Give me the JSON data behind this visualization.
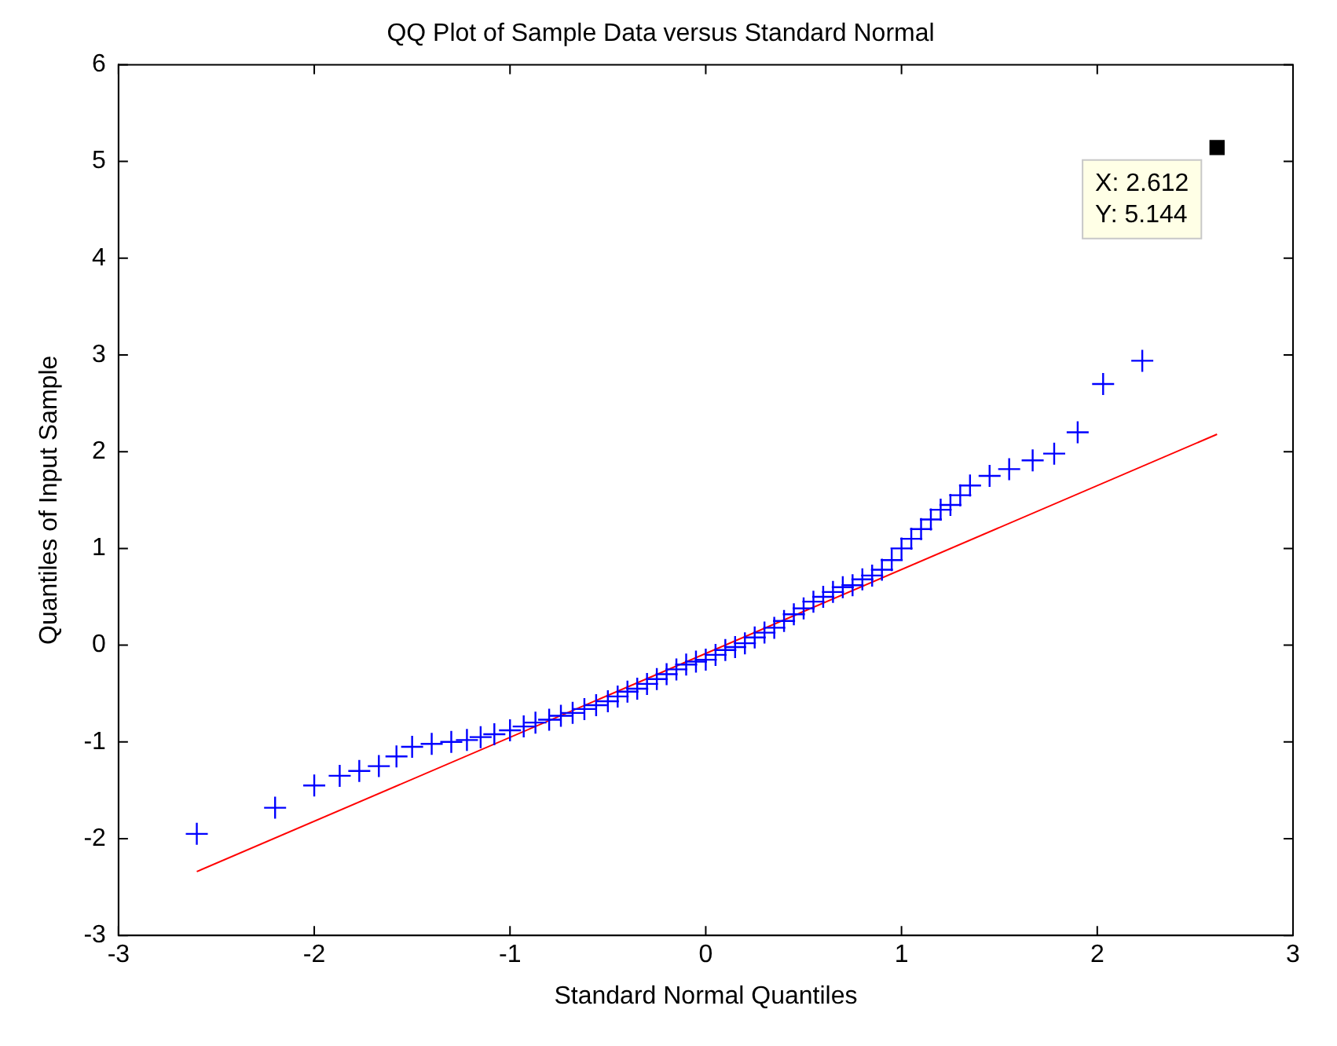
{
  "chart_data": {
    "type": "scatter",
    "title": "QQ Plot of Sample Data versus Standard Normal",
    "xlabel": "Standard Normal Quantiles",
    "ylabel": "Quantiles of Input Sample",
    "xlim": [
      -3,
      3
    ],
    "ylim": [
      -3,
      6
    ],
    "xticks": [
      -3,
      -2,
      -1,
      0,
      1,
      2,
      3
    ],
    "yticks": [
      -3,
      -2,
      -1,
      0,
      1,
      2,
      3,
      4,
      5,
      6
    ],
    "grid": false,
    "marker": "cross",
    "series": [
      {
        "color": "#0000ff",
        "x": [
          -2.6,
          -2.2,
          -2.0,
          -1.87,
          -1.77,
          -1.67,
          -1.58,
          -1.5,
          -1.4,
          -1.3,
          -1.22,
          -1.15,
          -1.08,
          -1.0,
          -0.93,
          -0.87,
          -0.8,
          -0.74,
          -0.68,
          -0.62,
          -0.56,
          -0.5,
          -0.45,
          -0.4,
          -0.35,
          -0.3,
          -0.25,
          -0.2,
          -0.15,
          -0.1,
          -0.05,
          0,
          0.05,
          0.1,
          0.15,
          0.2,
          0.25,
          0.3,
          0.35,
          0.4,
          0.45,
          0.5,
          0.55,
          0.6,
          0.65,
          0.7,
          0.75,
          0.8,
          0.85,
          0.9,
          0.95,
          1.0,
          1.05,
          1.1,
          1.15,
          1.2,
          1.25,
          1.3,
          1.35,
          1.45,
          1.55,
          1.67,
          1.78,
          1.9,
          2.03,
          2.23
        ],
        "values": [
          -1.95,
          -1.68,
          -1.45,
          -1.35,
          -1.3,
          -1.25,
          -1.15,
          -1.05,
          -1.02,
          -1.0,
          -0.98,
          -0.95,
          -0.92,
          -0.88,
          -0.84,
          -0.8,
          -0.77,
          -0.73,
          -0.7,
          -0.66,
          -0.62,
          -0.58,
          -0.53,
          -0.48,
          -0.45,
          -0.4,
          -0.35,
          -0.3,
          -0.25,
          -0.2,
          -0.17,
          -0.15,
          -0.1,
          -0.05,
          -0.02,
          0.02,
          0.08,
          0.13,
          0.18,
          0.25,
          0.32,
          0.38,
          0.45,
          0.5,
          0.55,
          0.6,
          0.62,
          0.68,
          0.72,
          0.78,
          0.88,
          1.0,
          1.1,
          1.2,
          1.3,
          1.4,
          1.45,
          1.55,
          1.65,
          1.75,
          1.82,
          1.91,
          1.98,
          2.2,
          2.7,
          2.94
        ]
      },
      {
        "type": "line",
        "marker": "none",
        "color": "#ff0000",
        "x": [
          -2.6,
          2.612
        ],
        "values": [
          -2.34,
          2.18
        ]
      },
      {
        "color": "#000000",
        "marker": "square",
        "x": [
          2.612
        ],
        "values": [
          5.144
        ]
      }
    ],
    "annotations": [
      {
        "text": "X: 2.612\nY: 5.144",
        "x": 2.612,
        "y": 5.144
      }
    ]
  }
}
